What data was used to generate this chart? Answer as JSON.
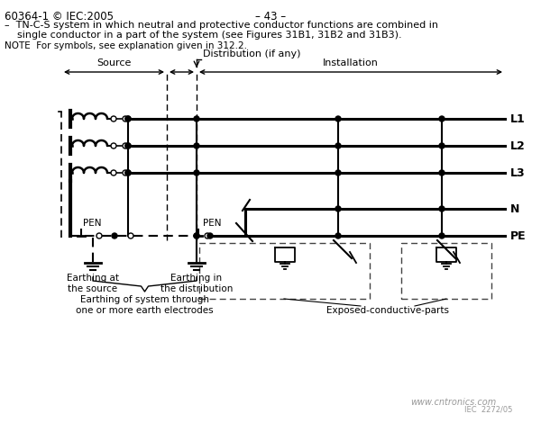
{
  "title_left": "60364-1 © IEC:2005",
  "title_center": "– 43 –",
  "desc_line1": "–  TN-C-S system in which neutral and protective conductor functions are combined in",
  "desc_line2": "    single conductor in a part of the system (see Figures 31B1, 31B2 and 31B3).",
  "note_line": "NOTE  For symbols, see explanation given in 312.2.",
  "label_dist": "Distribution (if any)",
  "label_source": "Source",
  "label_install": "Installation",
  "label_PEN1": "PEN",
  "label_PEN2": "PEN",
  "label_earth_source": "Earthing at\nthe source",
  "label_earth_dist": "Earthing in\nthe distribution",
  "label_earth_system": "Earthing of system through\none or more earth electrodes",
  "label_exposed": "Exposed-conductive-parts",
  "watermark": "www.cntronics.com",
  "watermark2": "IEC  2272/05",
  "bg_color": "#ffffff",
  "line_color": "#000000"
}
